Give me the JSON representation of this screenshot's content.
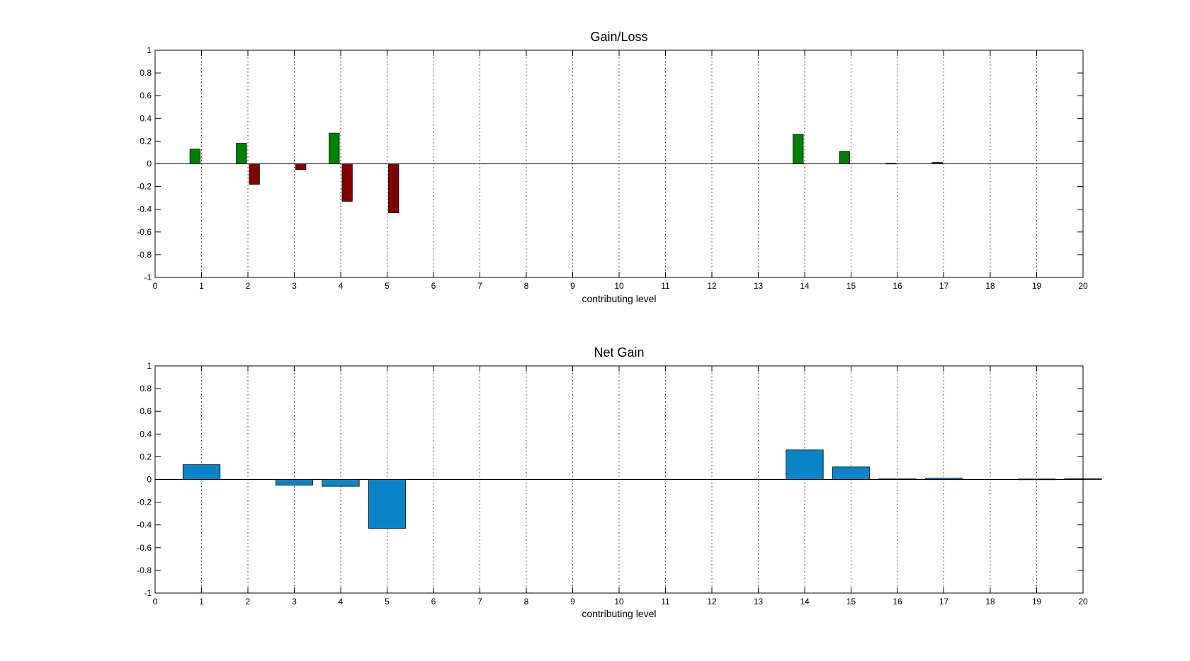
{
  "chart_data": [
    {
      "type": "bar",
      "title": "Gain/Loss",
      "xlabel": "contributing level",
      "ylabel": "",
      "xlim": [
        0,
        20
      ],
      "ylim": [
        -1,
        1
      ],
      "xticks": [
        "0",
        "1",
        "2",
        "3",
        "4",
        "5",
        "6",
        "7",
        "8",
        "9",
        "10",
        "11",
        "12",
        "13",
        "14",
        "15",
        "16",
        "17",
        "18",
        "19",
        "20"
      ],
      "yticks": [
        "1",
        "0.8",
        "0.6",
        "0.4",
        "0.2",
        "0",
        "-0.2",
        "-0.4",
        "-0.6",
        "-0.8",
        "-1"
      ],
      "grid": "x-dotted",
      "categories": [
        1,
        2,
        3,
        4,
        5,
        6,
        7,
        8,
        9,
        10,
        11,
        12,
        13,
        14,
        15,
        16,
        17,
        18,
        19,
        20
      ],
      "series": [
        {
          "color": "#008000",
          "values": [
            0.13,
            0.18,
            0,
            0.27,
            0,
            0,
            0,
            0,
            0,
            0,
            0,
            0,
            0,
            0.26,
            0.11,
            0.005,
            0.012,
            0,
            0,
            0
          ]
        },
        {
          "color": "#800000",
          "values": [
            0,
            -0.18,
            -0.05,
            -0.33,
            -0.43,
            0,
            0,
            0,
            0,
            0,
            0,
            0,
            0,
            0,
            0,
            0,
            0,
            0,
            0,
            0
          ]
        }
      ]
    },
    {
      "type": "bar",
      "title": "Net Gain",
      "xlabel": "contributing level",
      "ylabel": "",
      "xlim": [
        0,
        20
      ],
      "ylim": [
        -1,
        1
      ],
      "xticks": [
        "0",
        "1",
        "2",
        "3",
        "4",
        "5",
        "6",
        "7",
        "8",
        "9",
        "10",
        "11",
        "12",
        "13",
        "14",
        "15",
        "16",
        "17",
        "18",
        "19",
        "20"
      ],
      "yticks": [
        "1",
        "0.8",
        "0.6",
        "0.4",
        "0.2",
        "0",
        "-0.2",
        "-0.4",
        "-0.6",
        "-0.8",
        "-1"
      ],
      "grid": "x-dotted",
      "categories": [
        1,
        2,
        3,
        4,
        5,
        6,
        7,
        8,
        9,
        10,
        11,
        12,
        13,
        14,
        15,
        16,
        17,
        18,
        19,
        20
      ],
      "series": [
        {
          "color": "#0a84c8",
          "values": [
            0.13,
            0,
            -0.05,
            -0.06,
            -0.43,
            0,
            0,
            0,
            0,
            0,
            0,
            0,
            0,
            0.26,
            0.11,
            0.005,
            0.012,
            0,
            0.004,
            0.006
          ]
        }
      ]
    }
  ]
}
